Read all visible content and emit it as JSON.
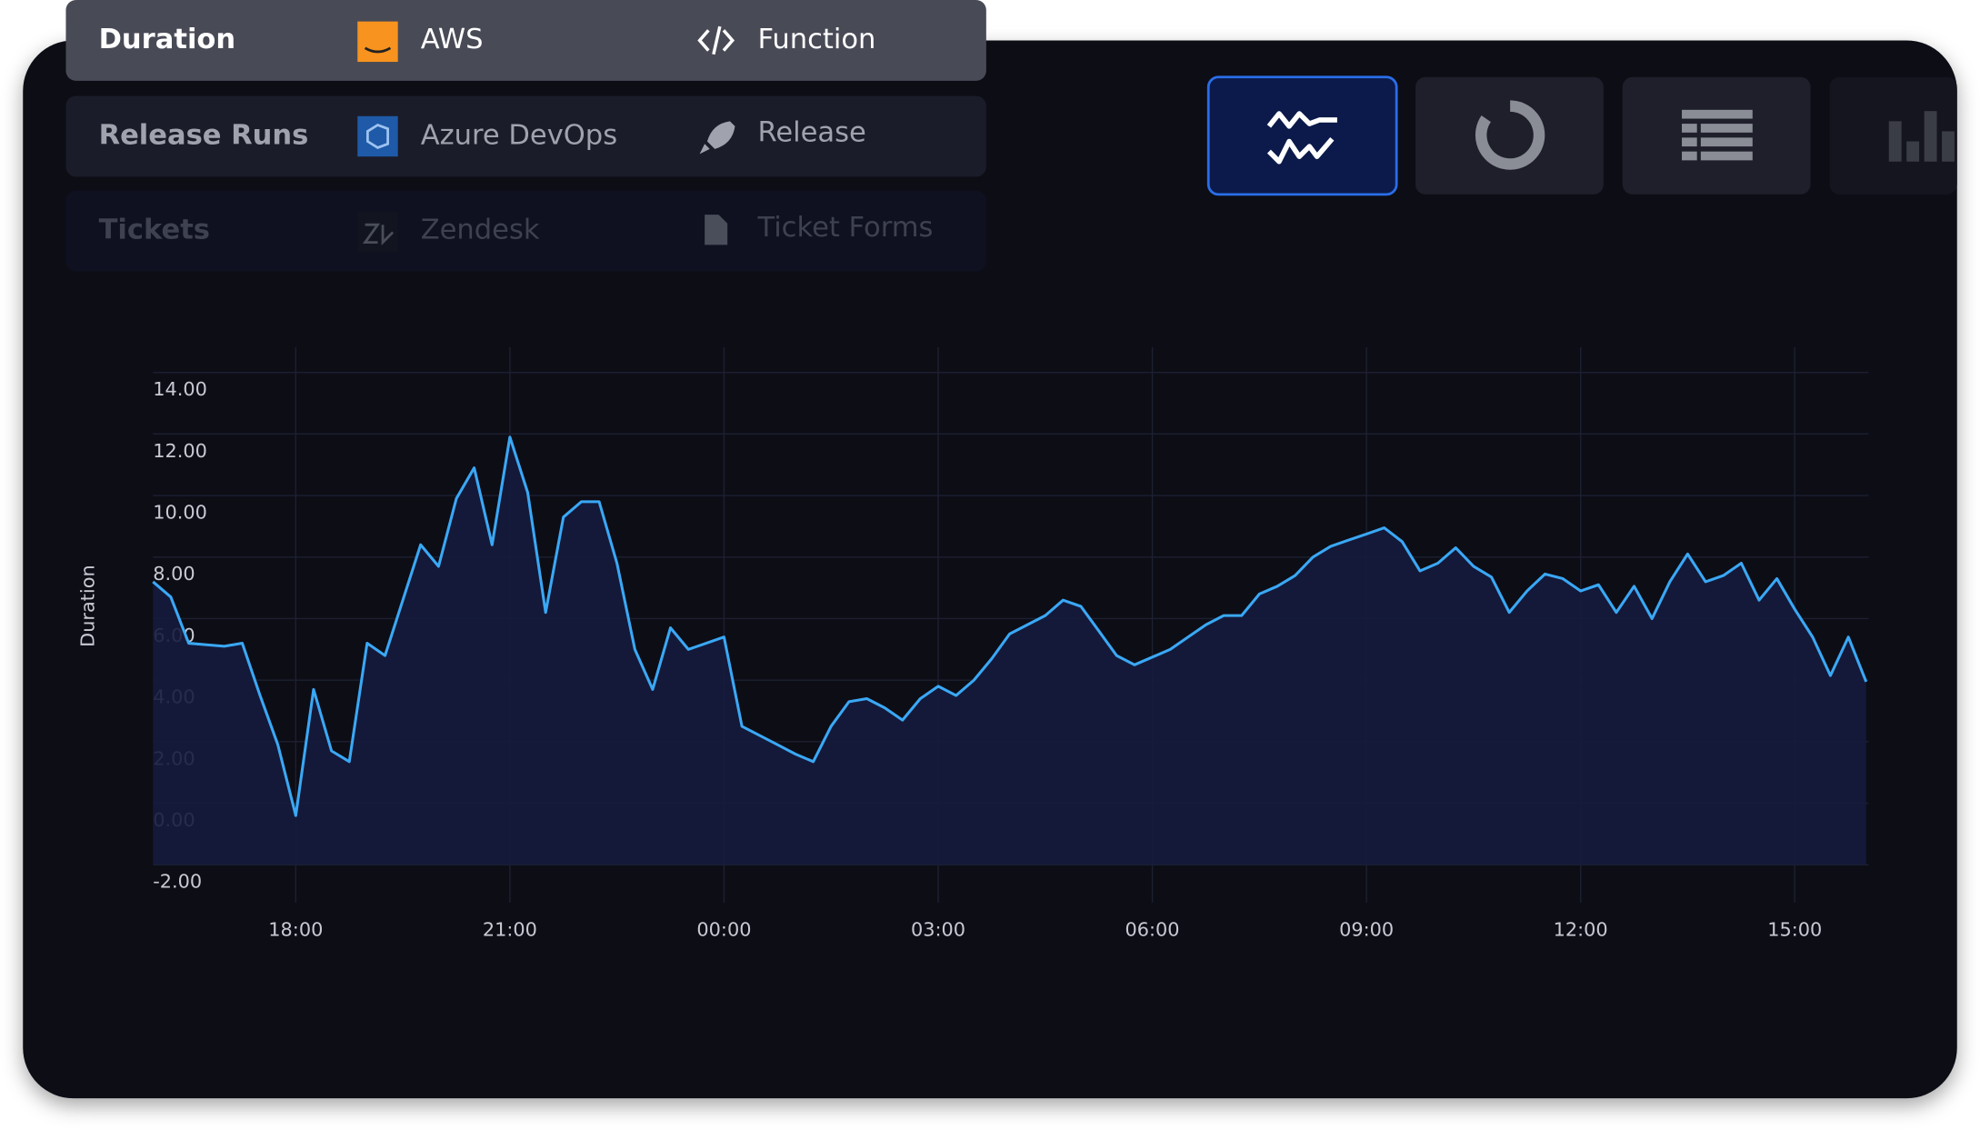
{
  "menu": {
    "rows": [
      {
        "label": "Duration",
        "source": "AWS",
        "kind": "Function"
      },
      {
        "label": "Release Runs",
        "source": "Azure DevOps",
        "kind": "Release"
      },
      {
        "label": "Tickets",
        "source": "Zendesk",
        "kind": "Ticket Forms"
      }
    ]
  },
  "chart_data": {
    "type": "line",
    "y_label": "Duration",
    "color": "#3aa8f5",
    "fill_color": "#151b3d",
    "grid": true,
    "categories": [
      null,
      null,
      null,
      null,
      null,
      null,
      null,
      null,
      "18:00",
      null,
      null,
      null,
      null,
      null,
      null,
      null,
      null,
      null,
      null,
      null,
      "21:00",
      null,
      null,
      null,
      null,
      null,
      null,
      null,
      null,
      null,
      null,
      null,
      "00:00",
      null,
      null,
      null,
      null,
      null,
      null,
      null,
      null,
      null,
      null,
      null,
      "03:00",
      null,
      null,
      null,
      null,
      null,
      null,
      null,
      null,
      null,
      null,
      null,
      "06:00",
      null,
      null,
      null,
      null,
      null,
      null,
      null,
      null,
      null,
      null,
      null,
      "09:00",
      null,
      null,
      null,
      null,
      null,
      null,
      null,
      null,
      null,
      null,
      null,
      "12:00",
      null,
      null,
      null,
      null,
      null,
      null,
      null,
      null,
      null,
      null,
      null,
      "15:00",
      null,
      null,
      null,
      null
    ],
    "values": [
      7.2,
      6.7,
      5.2,
      5.15,
      5.1,
      5.2,
      3.5,
      1.9,
      -0.4,
      3.7,
      1.7,
      1.35,
      5.2,
      4.8,
      6.6,
      8.4,
      7.7,
      9.9,
      10.9,
      8.4,
      11.9,
      10.1,
      6.2,
      9.3,
      9.8,
      9.8,
      7.8,
      5.0,
      3.7,
      5.7,
      5.0,
      5.2,
      5.4,
      2.5,
      2.2,
      1.9,
      1.6,
      1.35,
      2.5,
      3.3,
      3.4,
      3.1,
      2.7,
      3.4,
      3.8,
      3.5,
      4.0,
      4.7,
      5.5,
      5.8,
      6.1,
      6.6,
      6.4,
      5.6,
      4.8,
      4.5,
      4.75,
      5.0,
      5.4,
      5.8,
      6.1,
      6.1,
      6.8,
      7.05,
      7.4,
      8.0,
      8.35,
      8.55,
      8.75,
      8.95,
      8.5,
      7.55,
      7.8,
      8.3,
      7.7,
      7.35,
      6.2,
      6.9,
      7.45,
      7.3,
      6.9,
      7.1,
      6.2,
      7.05,
      6.0,
      7.2,
      8.1,
      7.2,
      7.4,
      7.8,
      6.6,
      7.3,
      6.3,
      5.4,
      4.15,
      5.4,
      3.95
    ],
    "ylim": [
      -2,
      14
    ],
    "yticks": [
      {
        "value": -2,
        "label": "-2.00"
      },
      {
        "value": 0,
        "label": "0.00"
      },
      {
        "value": 2,
        "label": "2.00"
      },
      {
        "value": 4,
        "label": "4.00"
      },
      {
        "value": 6,
        "label": "6.00"
      },
      {
        "value": 8,
        "label": "8.00"
      },
      {
        "value": 10,
        "label": "10.00"
      },
      {
        "value": 12,
        "label": "12.00"
      },
      {
        "value": 14,
        "label": "14.00"
      }
    ]
  }
}
